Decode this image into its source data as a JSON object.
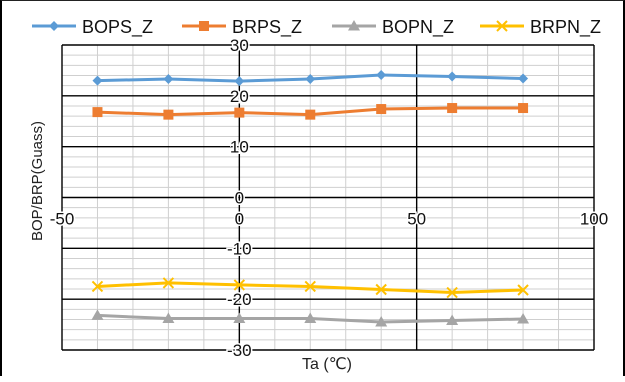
{
  "chart_data": {
    "type": "line",
    "title": "",
    "xlabel": "Ta (℃)",
    "ylabel": "BOP/BRP(Guass)",
    "xlim": [
      -50,
      100
    ],
    "ylim": [
      -30,
      30
    ],
    "x_ticks": [
      -50,
      0,
      50,
      100
    ],
    "y_ticks": [
      30,
      20,
      10,
      0,
      -10,
      -20,
      -30
    ],
    "x_tick_labels": [
      "-50",
      "0",
      "50",
      "100"
    ],
    "y_tick_labels": [
      "30",
      "20",
      "10",
      "0",
      "-10",
      "-20",
      "-30"
    ],
    "grid": true,
    "legend_position": "top",
    "x": [
      -40,
      -20,
      0,
      20,
      40,
      60,
      80
    ],
    "series": [
      {
        "name": "BOPS_Z",
        "color": "#5B9BD5",
        "marker": "diamond",
        "values": [
          23.0,
          23.3,
          22.9,
          23.3,
          24.1,
          23.8,
          23.4
        ]
      },
      {
        "name": "BRPS_Z",
        "color": "#ED7D31",
        "marker": "square",
        "values": [
          16.8,
          16.3,
          16.7,
          16.3,
          17.4,
          17.6,
          17.6
        ]
      },
      {
        "name": "BOPN_Z",
        "color": "#A5A5A5",
        "marker": "triangle",
        "values": [
          -23.2,
          -23.8,
          -23.8,
          -23.8,
          -24.5,
          -24.2,
          -23.9
        ]
      },
      {
        "name": "BRPN_Z",
        "color": "#FFC000",
        "marker": "x",
        "values": [
          -17.5,
          -16.8,
          -17.2,
          -17.5,
          -18.1,
          -18.7,
          -18.2
        ]
      }
    ]
  }
}
